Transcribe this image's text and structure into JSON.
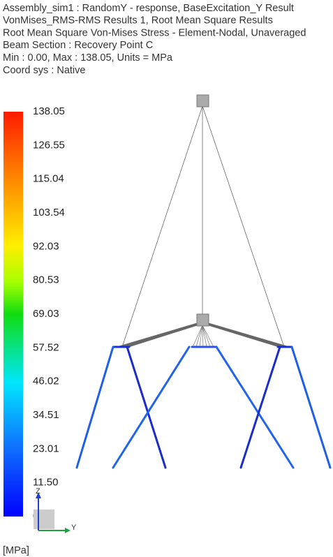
{
  "header": {
    "lines": [
      "Assembly_sim1 : RandomY - response, BaseExcitation_Y Result",
      "VonMises_RMS-RMS Results 1, Root Mean Square Results",
      "Root Mean Square Von-Mises Stress - Element-Nodal, Unaveraged",
      "Beam Section : Recovery Point C",
      "Min : 0.00, Max : 138.05, Units = MPa",
      "Coord sys : Native"
    ]
  },
  "legend": {
    "labels": [
      "138.05",
      "126.55",
      "115.04",
      "103.54",
      "92.03",
      "80.53",
      "69.03",
      "57.52",
      "46.02",
      "34.51",
      "23.01",
      "11.50",
      "0.00"
    ],
    "unit": "[MPa]"
  },
  "triad": {
    "z": "Z",
    "y": "Y"
  }
}
